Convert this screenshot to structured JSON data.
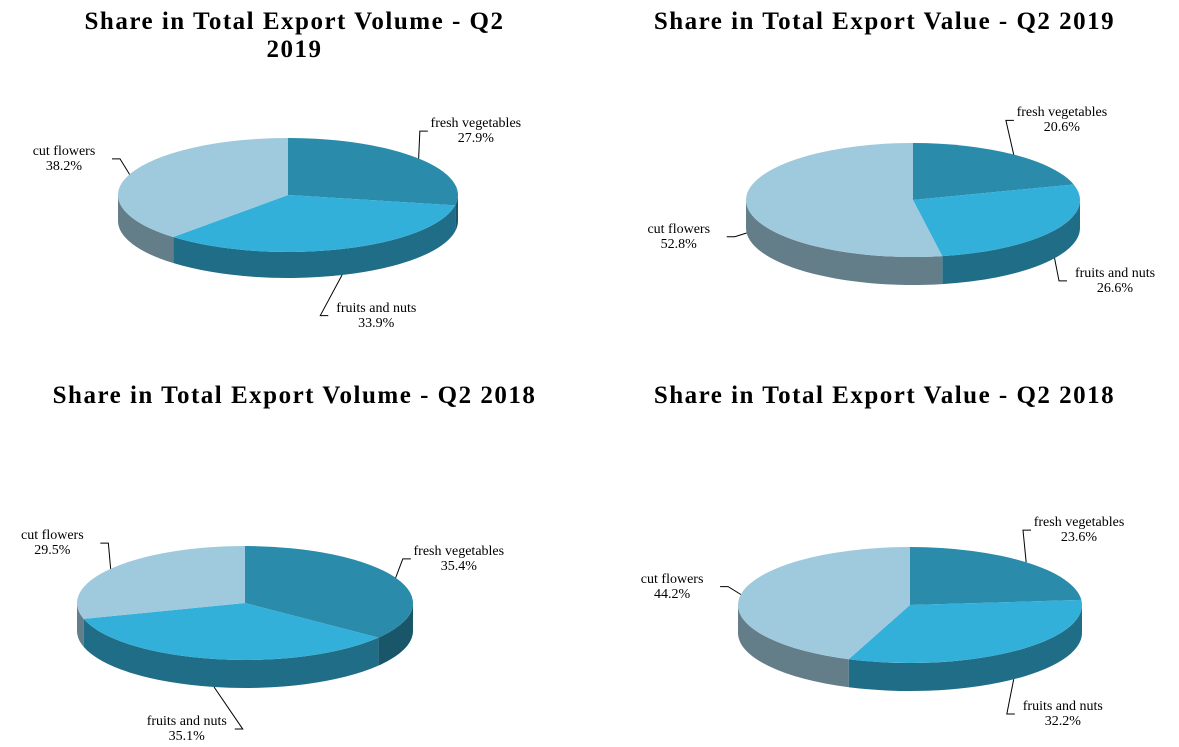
{
  "chart_data": [
    {
      "type": "pie",
      "title": "Share in Total Export Volume - Q2 2019",
      "categories": [
        "fresh vegetables",
        "fruits and nuts",
        "cut flowers"
      ],
      "values": [
        27.9,
        33.9,
        38.2
      ],
      "value_labels": [
        "27.9%",
        "33.9%",
        "38.2%"
      ],
      "colors": [
        "#2a8bab",
        "#33b0d9",
        "#9fc9dd"
      ]
    },
    {
      "type": "pie",
      "title": "Share in Total Export Value - Q2 2019",
      "categories": [
        "fresh vegetables",
        "fruits and nuts",
        "cut flowers"
      ],
      "values": [
        20.6,
        26.6,
        52.8
      ],
      "value_labels": [
        "20.6%",
        "26.6%",
        "52.8%"
      ],
      "colors": [
        "#2a8bab",
        "#33b0d9",
        "#9fc9dd"
      ]
    },
    {
      "type": "pie",
      "title": "Share in Total Export Volume - Q2 2018",
      "categories": [
        "fresh vegetables",
        "fruits and nuts",
        "cut flowers"
      ],
      "values": [
        35.4,
        35.1,
        29.5
      ],
      "value_labels": [
        "35.4%",
        "35.1%",
        "29.5%"
      ],
      "colors": [
        "#2a8bab",
        "#33b0d9",
        "#9fc9dd"
      ]
    },
    {
      "type": "pie",
      "title": "Share in Total Export Value - Q2 2018",
      "categories": [
        "fresh vegetables",
        "fruits and nuts",
        "cut flowers"
      ],
      "values": [
        23.6,
        32.2,
        44.2
      ],
      "value_labels": [
        "23.6%",
        "32.2%",
        "44.2%"
      ],
      "colors": [
        "#2a8bab",
        "#33b0d9",
        "#9fc9dd"
      ]
    }
  ]
}
